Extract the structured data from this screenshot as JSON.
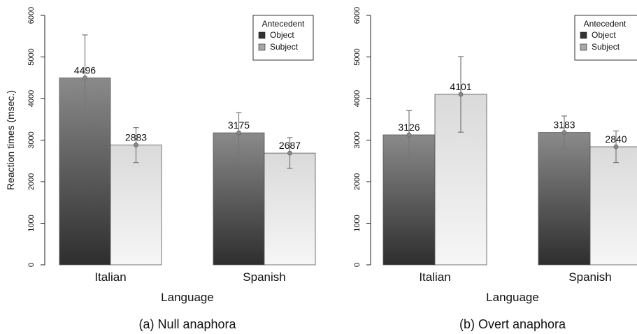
{
  "chart_data": [
    {
      "type": "bar",
      "title": "",
      "caption": "(a) Null anaphora",
      "xlabel": "Language",
      "ylabel": "Reaction times (msec.)",
      "ylim": [
        0,
        6000
      ],
      "yticks": [
        0,
        1000,
        2000,
        3000,
        4000,
        5000,
        6000
      ],
      "categories": [
        "Italian",
        "Spanish"
      ],
      "legend": {
        "title": "Antecedent",
        "position": "top-right",
        "entries": [
          "Object",
          "Subject"
        ]
      },
      "series": [
        {
          "name": "Object",
          "values": [
            4496,
            3175
          ],
          "error_low": [
            3470,
            2690
          ],
          "error_high": [
            5530,
            3660
          ],
          "labels": [
            "4496",
            "3175"
          ]
        },
        {
          "name": "Subject",
          "values": [
            2883,
            2687
          ],
          "error_low": [
            2460,
            2320
          ],
          "error_high": [
            3300,
            3060
          ],
          "labels": [
            "2883",
            "2687"
          ]
        }
      ],
      "grid": false
    },
    {
      "type": "bar",
      "title": "",
      "caption": "(b) Overt anaphora",
      "xlabel": "Language",
      "ylabel": "",
      "ylim": [
        0,
        6000
      ],
      "yticks": [
        0,
        1000,
        2000,
        3000,
        4000,
        5000,
        6000
      ],
      "categories": [
        "Italian",
        "Spanish"
      ],
      "legend": {
        "title": "Antecedent",
        "position": "top-right",
        "entries": [
          "Object",
          "Subject"
        ]
      },
      "series": [
        {
          "name": "Object",
          "values": [
            3126,
            3183
          ],
          "error_low": [
            2550,
            2790
          ],
          "error_high": [
            3710,
            3580
          ],
          "labels": [
            "3126",
            "3183"
          ]
        },
        {
          "name": "Subject",
          "values": [
            4101,
            2840
          ],
          "error_low": [
            3190,
            2460
          ],
          "error_high": [
            5010,
            3220
          ],
          "labels": [
            "4101",
            "2840"
          ]
        }
      ],
      "grid": false
    }
  ]
}
